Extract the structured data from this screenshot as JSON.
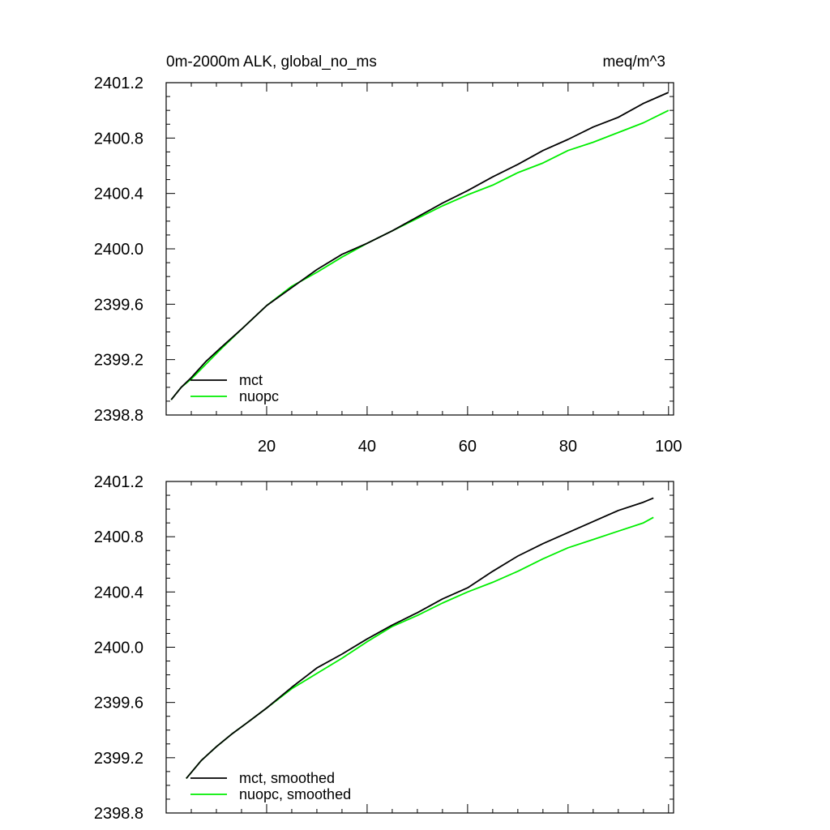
{
  "chart_data": [
    {
      "type": "line",
      "title_left": "0m-2000m ALK, global_no_ms",
      "title_right": "meq/m^3",
      "xlim": [
        0,
        101
      ],
      "ylim": [
        2398.8,
        2401.2
      ],
      "xticks": [
        20,
        40,
        60,
        80,
        100
      ],
      "xtick_labels": [
        "20",
        "40",
        "60",
        "80",
        "100"
      ],
      "yticks": [
        2398.8,
        2399.2,
        2399.6,
        2400.0,
        2400.4,
        2400.8,
        2401.2
      ],
      "ytick_labels": [
        "2398.8",
        "2399.2",
        "2399.6",
        "2400.0",
        "2400.4",
        "2400.8",
        "2401.2"
      ],
      "legend_location": "lower-left",
      "grid": false,
      "series": [
        {
          "name": "mct",
          "color": "#000000",
          "x": [
            1,
            3,
            5,
            8,
            11,
            15,
            20,
            25,
            30,
            35,
            40,
            45,
            50,
            55,
            60,
            65,
            70,
            75,
            80,
            85,
            90,
            95,
            100
          ],
          "y": [
            2398.91,
            2399.0,
            2399.07,
            2399.19,
            2399.29,
            2399.42,
            2399.59,
            2399.72,
            2399.85,
            2399.96,
            2400.04,
            2400.13,
            2400.23,
            2400.33,
            2400.42,
            2400.52,
            2400.61,
            2400.71,
            2400.79,
            2400.88,
            2400.95,
            2401.05,
            2401.13
          ]
        },
        {
          "name": "nuopc",
          "color": "#00ee00",
          "x": [
            1,
            3,
            5,
            8,
            11,
            15,
            20,
            25,
            30,
            35,
            40,
            45,
            50,
            55,
            60,
            65,
            70,
            75,
            80,
            85,
            90,
            95,
            100
          ],
          "y": [
            2398.91,
            2399.0,
            2399.06,
            2399.17,
            2399.28,
            2399.42,
            2399.59,
            2399.73,
            2399.83,
            2399.94,
            2400.04,
            2400.13,
            2400.22,
            2400.31,
            2400.39,
            2400.46,
            2400.55,
            2400.62,
            2400.71,
            2400.77,
            2400.84,
            2400.91,
            2401.0
          ]
        }
      ]
    },
    {
      "type": "line",
      "title_left": "",
      "title_right": "",
      "xlim": [
        0,
        101
      ],
      "ylim": [
        2398.8,
        2401.2
      ],
      "xticks": [
        20,
        40,
        60,
        80,
        100
      ],
      "xtick_labels": [
        "",
        "",
        "",
        "",
        ""
      ],
      "yticks": [
        2398.8,
        2399.2,
        2399.6,
        2400.0,
        2400.4,
        2400.8,
        2401.2
      ],
      "ytick_labels": [
        "2398.8",
        "2399.2",
        "2399.6",
        "2400.0",
        "2400.4",
        "2400.8",
        "2401.2"
      ],
      "legend_location": "lower-left",
      "grid": false,
      "series": [
        {
          "name": "mct, smoothed",
          "color": "#000000",
          "x": [
            4,
            7,
            10,
            13,
            16,
            20,
            25,
            30,
            35,
            40,
            45,
            50,
            55,
            60,
            65,
            70,
            75,
            80,
            85,
            90,
            95,
            97
          ],
          "y": [
            2399.05,
            2399.18,
            2399.28,
            2399.37,
            2399.45,
            2399.56,
            2399.71,
            2399.85,
            2399.95,
            2400.06,
            2400.16,
            2400.25,
            2400.35,
            2400.43,
            2400.55,
            2400.66,
            2400.75,
            2400.83,
            2400.91,
            2400.99,
            2401.05,
            2401.08
          ]
        },
        {
          "name": "nuopc, smoothed",
          "color": "#00ee00",
          "x": [
            4,
            7,
            10,
            13,
            16,
            20,
            25,
            30,
            35,
            40,
            45,
            50,
            55,
            60,
            65,
            70,
            75,
            80,
            85,
            90,
            95,
            97
          ],
          "y": [
            2399.05,
            2399.18,
            2399.28,
            2399.37,
            2399.45,
            2399.56,
            2399.7,
            2399.81,
            2399.92,
            2400.04,
            2400.15,
            2400.23,
            2400.32,
            2400.4,
            2400.47,
            2400.55,
            2400.64,
            2400.72,
            2400.78,
            2400.84,
            2400.9,
            2400.94
          ]
        }
      ]
    }
  ]
}
